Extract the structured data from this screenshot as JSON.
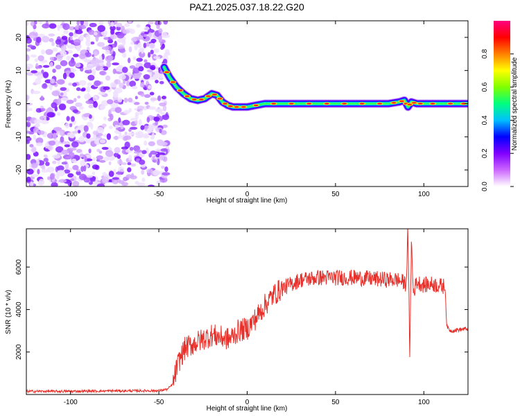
{
  "title": "PAZ1.2025.037.18.22.G20",
  "chart_data": [
    {
      "type": "heatmap",
      "xlabel": "Height of straight line (km)",
      "ylabel": "Frequency (Hz)",
      "xlim": [
        -125,
        125
      ],
      "ylim": [
        -25,
        25
      ],
      "xticks": [
        "-100",
        "-50",
        "0",
        "50",
        "100"
      ],
      "yticks": [
        "-20",
        "-10",
        "0",
        "10",
        "20"
      ],
      "colorbar": {
        "label": "Normalized spectral amplitude",
        "range": [
          0,
          1
        ],
        "ticks": [
          "0.0",
          "0.2",
          "0.4",
          "0.6",
          "0.8"
        ],
        "colors": [
          "#ffffff",
          "#cc66ff",
          "#8000ff",
          "#0000ff",
          "#00c0ff",
          "#00ff80",
          "#80ff00",
          "#ffff00",
          "#ff8000",
          "#ff0000",
          "#ff0080"
        ]
      },
      "noise_region_x": [
        -125,
        -45
      ],
      "ridge": {
        "x": [
          -47,
          -44,
          -40,
          -36,
          -32,
          -28,
          -24,
          -20,
          -17,
          -14,
          -11,
          -8,
          -4,
          0,
          10,
          20,
          30,
          40,
          50,
          60,
          70,
          80,
          86,
          89,
          91,
          93,
          96,
          100,
          110,
          120,
          125
        ],
        "y": [
          11,
          8,
          5,
          3,
          1.5,
          1,
          1.5,
          3,
          2.5,
          0.5,
          -0.5,
          -1,
          -1,
          -1,
          0,
          0,
          0,
          0,
          0,
          0,
          0,
          0,
          0.5,
          1,
          -1,
          0.5,
          0,
          0,
          0,
          0,
          0
        ]
      }
    },
    {
      "type": "line",
      "xlabel": "Height of straight line (km)",
      "ylabel": "SNR (10 * v/v)",
      "xlim": [
        -125,
        125
      ],
      "ylim": [
        0,
        7800
      ],
      "xticks": [
        "-100",
        "-50",
        "0",
        "50",
        "100"
      ],
      "yticks": [
        "2000",
        "4000",
        "6000"
      ],
      "color": "#e8302a",
      "series": [
        {
          "x": [
            -125,
            -100,
            -75,
            -50,
            -45,
            -42,
            -40,
            -38,
            -35,
            -30,
            -25,
            -20,
            -15,
            -10,
            -5,
            0,
            5,
            10,
            15,
            20,
            25,
            30,
            40,
            50,
            60,
            70,
            80,
            85,
            88,
            90,
            91,
            92,
            93,
            94,
            96,
            100,
            105,
            110,
            112,
            113,
            115,
            120,
            125
          ],
          "y": [
            150,
            150,
            170,
            180,
            250,
            500,
            1200,
            1700,
            2200,
            2400,
            2600,
            2800,
            2700,
            2600,
            3000,
            3100,
            3600,
            4200,
            4700,
            5000,
            5200,
            5400,
            5500,
            5500,
            5500,
            5450,
            5400,
            5400,
            5300,
            5200,
            7800,
            1800,
            7300,
            4800,
            5300,
            5150,
            5200,
            5100,
            5100,
            3200,
            3000,
            3050,
            3100
          ]
        }
      ]
    }
  ]
}
